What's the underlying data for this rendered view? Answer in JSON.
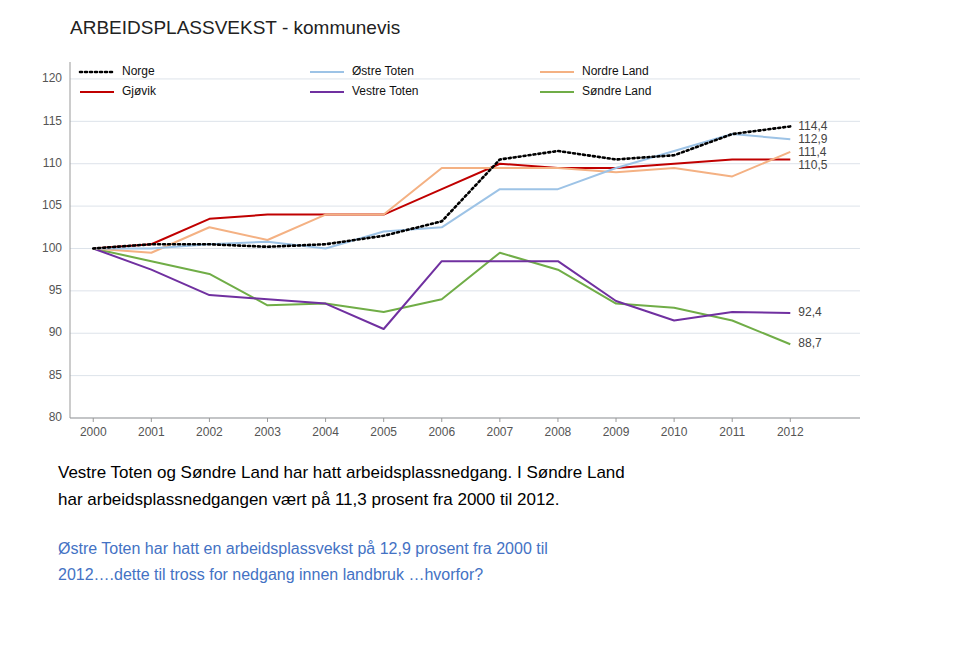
{
  "chart_data": {
    "type": "line",
    "title": "ARBEIDSPLASSVEKST - kommunevis",
    "x": [
      2000,
      2001,
      2002,
      2003,
      2004,
      2005,
      2006,
      2007,
      2008,
      2009,
      2010,
      2011,
      2012
    ],
    "xlim": [
      1999.6,
      2013.2
    ],
    "xticks": [
      2000,
      2001,
      2002,
      2003,
      2004,
      2005,
      2006,
      2007,
      2008,
      2009,
      2010,
      2011,
      2012
    ],
    "ylim": [
      80,
      122
    ],
    "yticks": [
      80,
      85,
      90,
      95,
      100,
      105,
      110,
      115,
      120
    ],
    "grid": true,
    "legend": "top-left",
    "series": [
      {
        "name": "Norge",
        "color": "#000000",
        "line_style": "dotted",
        "values": [
          100.0,
          100.5,
          100.5,
          100.2,
          100.5,
          101.5,
          103.2,
          110.5,
          111.5,
          110.5,
          111.0,
          113.5,
          114.4
        ],
        "value_labels": [
          null,
          null,
          null,
          null,
          null,
          null,
          null,
          null,
          null,
          null,
          null,
          null,
          "114,4"
        ]
      },
      {
        "name": "Østre Toten",
        "color": "#9dc3e6",
        "line_style": "solid",
        "values": [
          100.0,
          100.0,
          100.5,
          100.8,
          100.0,
          102.0,
          102.5,
          107.0,
          107.0,
          109.5,
          111.5,
          113.5,
          112.9
        ],
        "value_labels": [
          null,
          null,
          null,
          null,
          null,
          null,
          null,
          null,
          null,
          null,
          null,
          null,
          "112,9"
        ]
      },
      {
        "name": "Nordre Land",
        "color": "#f4b183",
        "line_style": "solid",
        "values": [
          100.0,
          99.5,
          102.5,
          101.0,
          104.0,
          104.0,
          109.5,
          109.5,
          109.5,
          109.0,
          109.5,
          108.5,
          111.4
        ],
        "value_labels": [
          null,
          null,
          null,
          null,
          null,
          null,
          null,
          null,
          null,
          null,
          null,
          null,
          "111,4"
        ]
      },
      {
        "name": "Gjøvik",
        "color": "#c00000",
        "line_style": "solid",
        "values": [
          100.0,
          100.5,
          103.5,
          104.0,
          104.0,
          104.0,
          107.0,
          110.0,
          109.5,
          109.5,
          110.0,
          110.5,
          110.5
        ],
        "value_labels": [
          null,
          null,
          null,
          null,
          null,
          null,
          null,
          null,
          null,
          null,
          null,
          null,
          "110,5"
        ]
      },
      {
        "name": "Vestre Toten",
        "color": "#7030a0",
        "line_style": "solid",
        "values": [
          100.0,
          97.5,
          94.5,
          94.0,
          93.5,
          90.5,
          98.5,
          98.5,
          98.5,
          93.8,
          91.5,
          92.5,
          92.4
        ],
        "value_labels": [
          null,
          null,
          null,
          null,
          null,
          null,
          null,
          null,
          null,
          null,
          null,
          null,
          "92,4"
        ]
      },
      {
        "name": "Søndre Land",
        "color": "#70ad47",
        "line_style": "solid",
        "values": [
          100.0,
          98.5,
          97.0,
          93.3,
          93.5,
          92.5,
          94.0,
          99.5,
          97.5,
          93.5,
          93.0,
          91.5,
          88.7
        ],
        "value_labels": [
          null,
          null,
          null,
          null,
          null,
          null,
          null,
          null,
          null,
          null,
          null,
          null,
          "88,7"
        ]
      }
    ],
    "annotations": [
      {
        "text": "Vestre Toten og Søndre Land har hatt arbeidsplassnedgang. I Søndre Land\nhar arbeidsplassnedgangen vært på 11,3 prosent fra 2000 til 2012.",
        "color": "#000000"
      },
      {
        "text": "Østre Toten har hatt en arbeidsplassvekst på 12,9 prosent fra 2000 til\n2012….dette til tross for nedgang innen landbruk …hvorfor?",
        "color": "#4472c4"
      }
    ]
  }
}
